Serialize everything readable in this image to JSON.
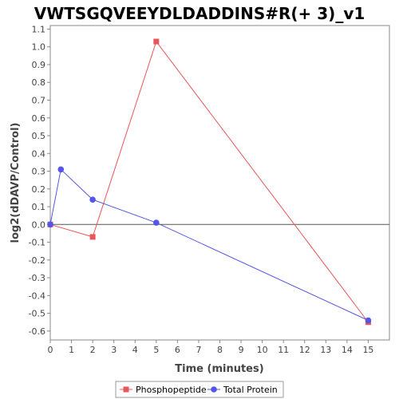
{
  "chart_data": {
    "type": "line",
    "title": "VWTSGQVEEYDLDADDINS#R(+ 3)_v1",
    "xlabel": "Time (minutes)",
    "ylabel": "log2(dDAVP/Control)",
    "xlim": [
      0,
      16
    ],
    "ylim": [
      -0.65,
      1.12
    ],
    "x_ticks": [
      0,
      1,
      2,
      3,
      4,
      5,
      6,
      7,
      8,
      9,
      10,
      11,
      12,
      13,
      14,
      15
    ],
    "y_ticks": [
      -0.6,
      -0.5,
      -0.4,
      -0.3,
      -0.2,
      -0.1,
      0.0,
      0.1,
      0.2,
      0.3,
      0.4,
      0.5,
      0.6,
      0.7,
      0.8,
      0.9,
      1.0,
      1.1
    ],
    "y_tick_labels": [
      "-0.6",
      "-0.5",
      "-0.4",
      "-0.3",
      "-0.2",
      "-0.1",
      "0.0",
      "0.1",
      "0.2",
      "0.3",
      "0.4",
      "0.5",
      "0.6",
      "0.7",
      "0.8",
      "0.9",
      "1.0",
      "1.1"
    ],
    "zero_line": true,
    "grid": false,
    "legend_position": "bottom-center",
    "series": [
      {
        "name": "Phosphopeptide",
        "color": "#e8555a",
        "marker": "square",
        "x": [
          0,
          2,
          5,
          15
        ],
        "y": [
          0.0,
          -0.07,
          1.03,
          -0.55
        ]
      },
      {
        "name": "Total Protein",
        "color": "#5555e8",
        "marker": "circle",
        "x": [
          0,
          0.5,
          2,
          5,
          15
        ],
        "y": [
          0.0,
          0.31,
          0.14,
          0.01,
          -0.54
        ]
      }
    ]
  }
}
